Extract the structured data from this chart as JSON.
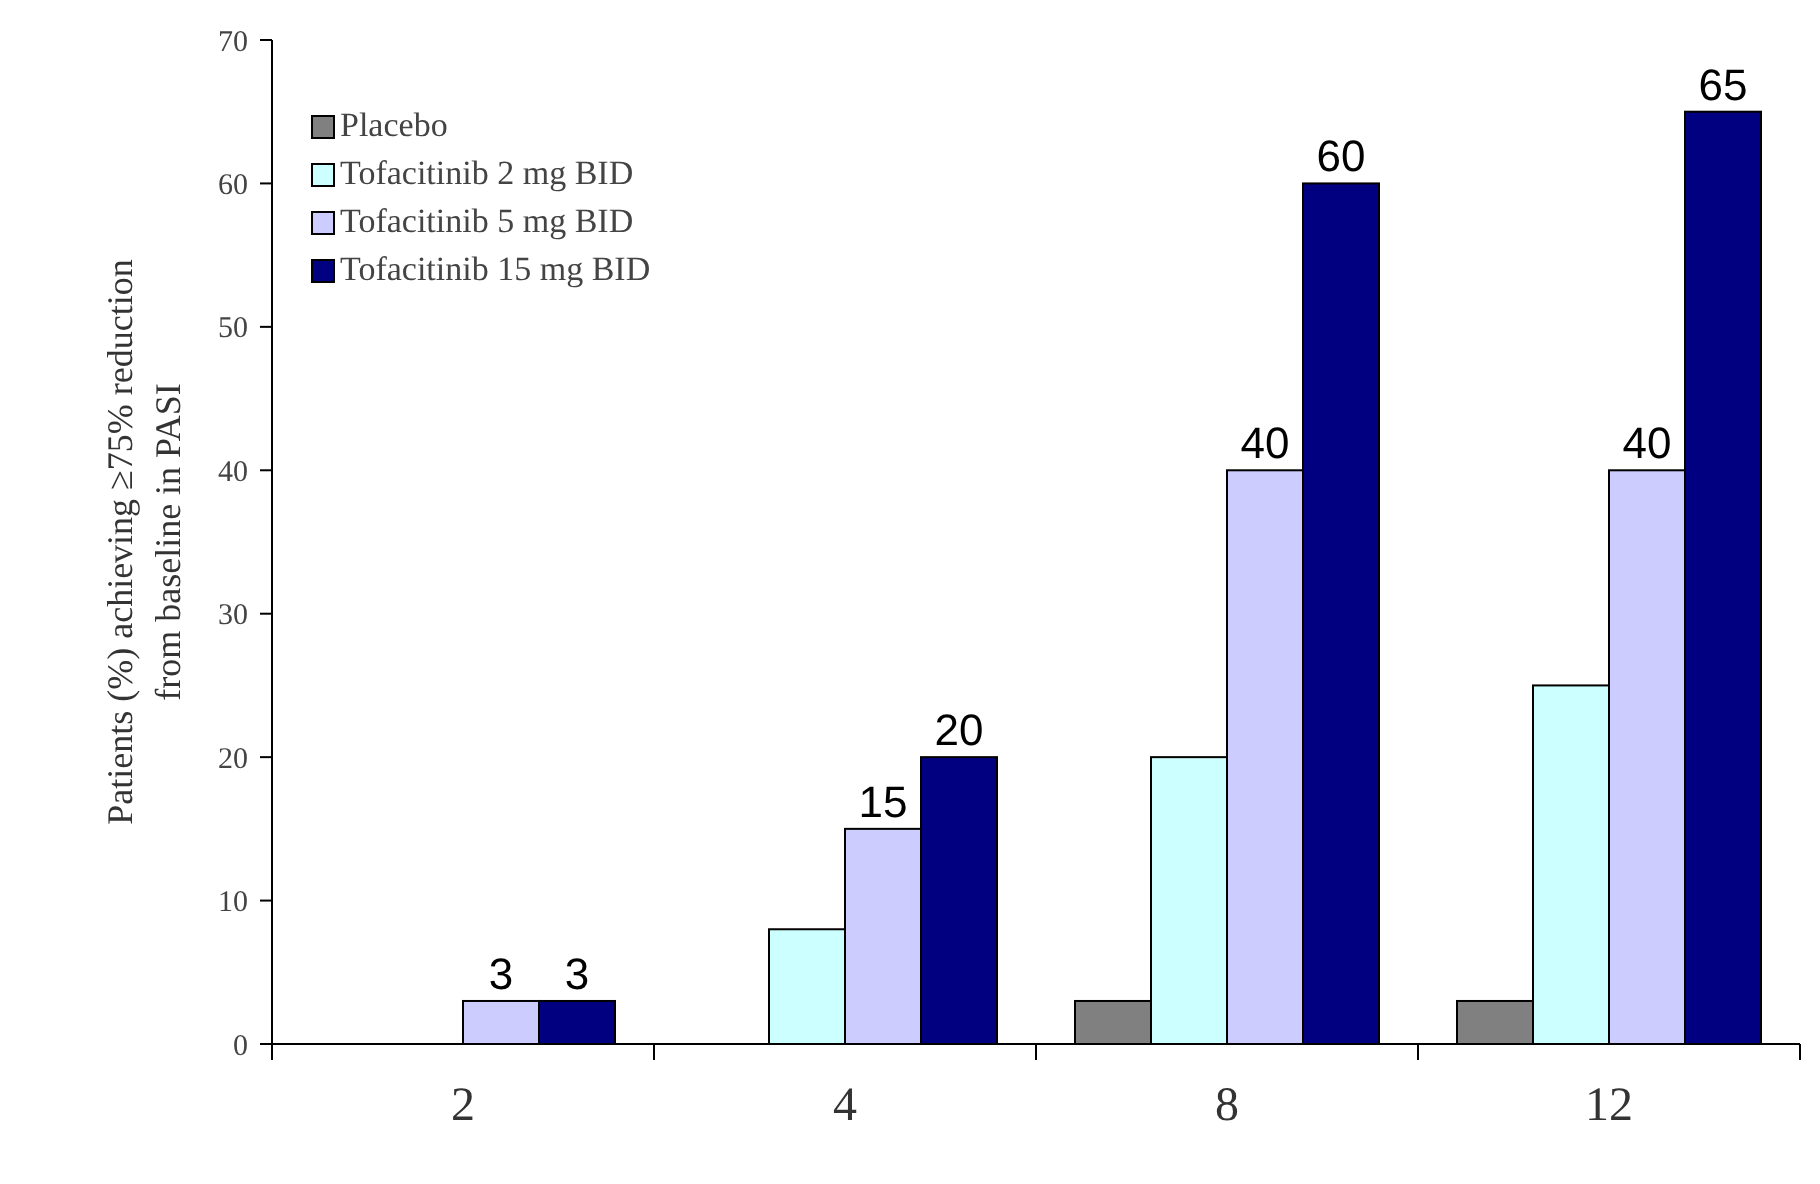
{
  "chart_data": {
    "type": "bar",
    "ylabel": "Patients (%) achieving ≥75% reduction\nfrom baseline in PASI",
    "categories": [
      "2",
      "4",
      "8",
      "12"
    ],
    "ylim": [
      0,
      70
    ],
    "yticks": [
      0,
      10,
      20,
      30,
      40,
      50,
      60,
      70
    ],
    "grid": false,
    "legend": "top left",
    "series": [
      {
        "name": "Placebo",
        "color": "#808080",
        "values": [
          0,
          0,
          3,
          3
        ]
      },
      {
        "name": "Tofacitinib 2 mg BID",
        "color": "#ccffff",
        "values": [
          0,
          8,
          20,
          25
        ]
      },
      {
        "name": "Tofacitinib 5 mg BID",
        "color": "#ccccff",
        "values": [
          3,
          15,
          40,
          40
        ],
        "value_labels": [
          "3",
          "15",
          "40",
          "40"
        ]
      },
      {
        "name": "Tofacitinib 15 mg BID",
        "color": "#000080",
        "values": [
          3,
          20,
          60,
          65
        ],
        "value_labels": [
          "3",
          "20",
          "60",
          "65"
        ]
      }
    ]
  }
}
